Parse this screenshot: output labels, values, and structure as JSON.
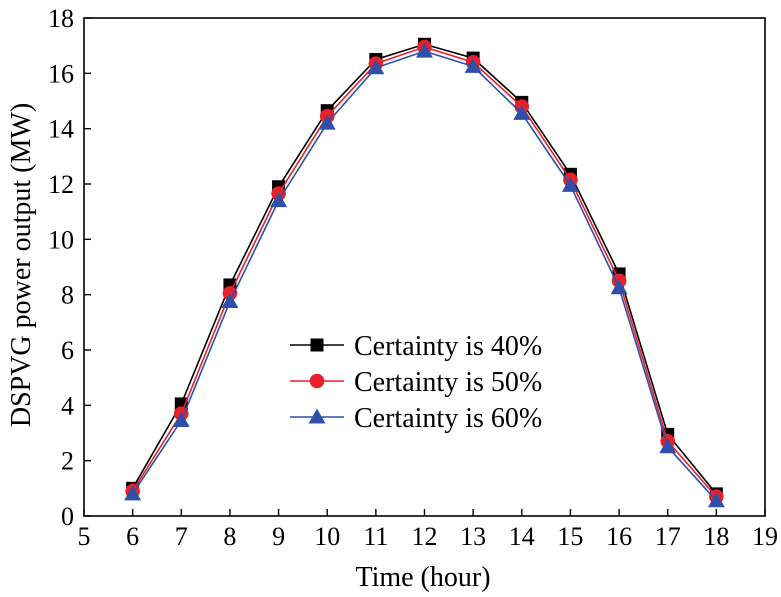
{
  "chart_data": {
    "type": "line",
    "xlabel": "Time (hour)",
    "ylabel": "DSPVG power output (MW)",
    "xlim": [
      5,
      19
    ],
    "ylim": [
      0,
      18
    ],
    "xticks": [
      5,
      6,
      7,
      8,
      9,
      10,
      11,
      12,
      13,
      14,
      15,
      16,
      17,
      18,
      19
    ],
    "yticks": [
      0,
      2,
      4,
      6,
      8,
      10,
      12,
      14,
      16,
      18
    ],
    "grid": false,
    "legend_position": "center",
    "x": [
      6,
      7,
      8,
      9,
      10,
      11,
      12,
      13,
      14,
      15,
      16,
      17,
      18
    ],
    "series": [
      {
        "name": "Certainty is 40%",
        "color": "#000000",
        "marker": "square",
        "values": [
          1.0,
          4.05,
          8.35,
          11.9,
          14.65,
          16.5,
          17.05,
          16.55,
          14.95,
          12.35,
          8.75,
          2.95,
          0.8
        ]
      },
      {
        "name": "Certainty is 50%",
        "color": "#e8202a",
        "marker": "circle",
        "values": [
          0.9,
          3.7,
          8.05,
          11.65,
          14.45,
          16.35,
          16.95,
          16.4,
          14.8,
          12.15,
          8.5,
          2.7,
          0.7
        ]
      },
      {
        "name": "Certainty is 60%",
        "color": "#2f4fa8",
        "marker": "triangle",
        "values": [
          0.8,
          3.45,
          7.75,
          11.4,
          14.2,
          16.2,
          16.8,
          16.25,
          14.55,
          11.95,
          8.25,
          2.5,
          0.55
        ]
      }
    ]
  }
}
